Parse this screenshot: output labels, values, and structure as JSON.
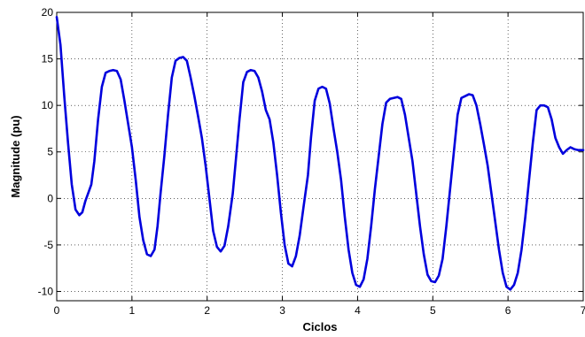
{
  "chart_data": {
    "type": "line",
    "title": "",
    "xlabel": "Ciclos",
    "ylabel": "Magnitude (pu)",
    "xlim": [
      0,
      7
    ],
    "ylim": [
      -11,
      20
    ],
    "xticks": [
      0,
      1,
      2,
      3,
      4,
      5,
      6,
      7
    ],
    "yticks": [
      -10,
      -5,
      0,
      5,
      10,
      15,
      20
    ],
    "grid": true,
    "series": [
      {
        "color": "#0000dd",
        "x": [
          0,
          0.05,
          0.1,
          0.15,
          0.2,
          0.25,
          0.3,
          0.34,
          0.38,
          0.42,
          0.46,
          0.5,
          0.55,
          0.6,
          0.65,
          0.7,
          0.75,
          0.8,
          0.85,
          0.9,
          0.95,
          1.0,
          1.05,
          1.1,
          1.15,
          1.2,
          1.25,
          1.3,
          1.34,
          1.38,
          1.43,
          1.48,
          1.53,
          1.58,
          1.63,
          1.68,
          1.73,
          1.78,
          1.83,
          1.88,
          1.93,
          1.98,
          2.03,
          2.08,
          2.13,
          2.18,
          2.23,
          2.28,
          2.34,
          2.38,
          2.43,
          2.48,
          2.53,
          2.58,
          2.63,
          2.68,
          2.73,
          2.78,
          2.83,
          2.88,
          2.93,
          2.98,
          3.03,
          3.08,
          3.13,
          3.18,
          3.23,
          3.28,
          3.34,
          3.38,
          3.43,
          3.48,
          3.53,
          3.58,
          3.63,
          3.68,
          3.73,
          3.78,
          3.83,
          3.88,
          3.93,
          3.98,
          4.03,
          4.08,
          4.13,
          4.18,
          4.23,
          4.28,
          4.33,
          4.38,
          4.43,
          4.48,
          4.53,
          4.58,
          4.63,
          4.68,
          4.73,
          4.78,
          4.83,
          4.88,
          4.93,
          4.98,
          5.03,
          5.08,
          5.13,
          5.18,
          5.23,
          5.28,
          5.33,
          5.38,
          5.43,
          5.48,
          5.53,
          5.58,
          5.63,
          5.68,
          5.73,
          5.78,
          5.83,
          5.88,
          5.93,
          5.98,
          6.03,
          6.08,
          6.13,
          6.18,
          6.23,
          6.28,
          6.33,
          6.38,
          6.43,
          6.48,
          6.53,
          6.58,
          6.63,
          6.68,
          6.73,
          6.78,
          6.83,
          6.88,
          6.93,
          7.0
        ],
        "y": [
          19.5,
          16.5,
          11,
          6,
          1.5,
          -1.2,
          -1.8,
          -1.5,
          -0.3,
          0.6,
          1.5,
          4,
          8.5,
          12,
          13.5,
          13.7,
          13.8,
          13.7,
          12.8,
          10.5,
          8,
          5.5,
          2,
          -2,
          -4.5,
          -6,
          -6.2,
          -5.5,
          -3,
          0.5,
          4.5,
          9,
          13,
          14.8,
          15.1,
          15.2,
          14.8,
          13,
          11,
          8.8,
          6.5,
          3.5,
          0,
          -3.5,
          -5.2,
          -5.7,
          -5.1,
          -3,
          0.5,
          4,
          8.5,
          12.5,
          13.6,
          13.8,
          13.7,
          13,
          11.5,
          9.5,
          8.5,
          6,
          2.5,
          -1.5,
          -5,
          -7,
          -7.3,
          -6.2,
          -4,
          -1,
          2.5,
          6.5,
          10.5,
          11.8,
          12,
          11.8,
          10.2,
          7.5,
          5,
          2,
          -2,
          -5.5,
          -8,
          -9.3,
          -9.5,
          -8.7,
          -6.5,
          -3,
          1,
          4.5,
          8,
          10.3,
          10.7,
          10.8,
          10.9,
          10.7,
          9,
          6.5,
          4,
          0.5,
          -3,
          -6,
          -8.2,
          -8.9,
          -9,
          -8.3,
          -6.5,
          -3,
          1,
          5,
          9,
          10.8,
          11,
          11.2,
          11.1,
          10,
          8,
          5.8,
          3.5,
          0.5,
          -2.5,
          -5.5,
          -8,
          -9.5,
          -9.8,
          -9.3,
          -8,
          -5.5,
          -2,
          2,
          6,
          9.5,
          10,
          10,
          9.8,
          8.5,
          6.5,
          5.5,
          4.8,
          5.2,
          5.5,
          5.3,
          5.2,
          5.2
        ]
      }
    ]
  }
}
